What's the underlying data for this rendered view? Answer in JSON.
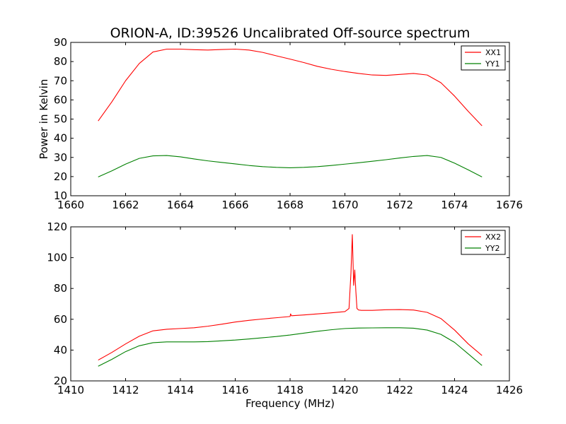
{
  "chart_data": [
    {
      "type": "line",
      "title": "ORION-A, ID:39526 Uncalibrated Off-source spectrum",
      "xlabel": "",
      "ylabel": "Power in Kelvin",
      "xlim": [
        1660,
        1676
      ],
      "ylim": [
        10,
        90
      ],
      "xticks": [
        "1660",
        "1662",
        "1664",
        "1666",
        "1668",
        "1670",
        "1672",
        "1674",
        "1676"
      ],
      "yticks": [
        "10",
        "20",
        "30",
        "40",
        "50",
        "60",
        "70",
        "80",
        "90"
      ],
      "legend": "top-right",
      "x": [
        1661.0,
        1661.5,
        1662.0,
        1662.5,
        1663.0,
        1663.5,
        1664.0,
        1664.5,
        1665.0,
        1665.5,
        1666.0,
        1666.5,
        1667.0,
        1667.5,
        1668.0,
        1668.5,
        1669.0,
        1669.5,
        1670.0,
        1670.5,
        1671.0,
        1671.5,
        1672.0,
        1672.5,
        1673.0,
        1673.5,
        1674.0,
        1674.5,
        1675.0
      ],
      "series": [
        {
          "name": "XX1",
          "color": "#ff0000",
          "values": [
            49,
            59,
            70,
            79,
            85,
            86.5,
            86.5,
            86.2,
            86,
            86.3,
            86.5,
            86,
            84.8,
            83,
            81.3,
            79.5,
            77.5,
            76,
            74.8,
            73.8,
            73,
            72.8,
            73.3,
            73.8,
            73,
            69,
            62,
            54,
            46.5
          ]
        },
        {
          "name": "YY1",
          "color": "#008000",
          "values": [
            19.8,
            23,
            26.5,
            29.5,
            30.8,
            31,
            30.3,
            29.2,
            28.2,
            27.4,
            26.6,
            25.8,
            25.2,
            24.8,
            24.6,
            24.8,
            25.2,
            25.8,
            26.5,
            27.2,
            28,
            28.8,
            29.7,
            30.5,
            31,
            30,
            27,
            23.5,
            19.8
          ]
        }
      ]
    },
    {
      "type": "line",
      "title": "",
      "xlabel": "Frequency (MHz)",
      "ylabel": "",
      "xlim": [
        1410,
        1426
      ],
      "ylim": [
        20,
        120
      ],
      "xticks": [
        "1410",
        "1412",
        "1414",
        "1416",
        "1418",
        "1420",
        "1422",
        "1424",
        "1426"
      ],
      "yticks": [
        "20",
        "40",
        "60",
        "80",
        "100",
        "120"
      ],
      "legend": "top-right",
      "series": [
        {
          "name": "XX2",
          "color": "#ff0000",
          "x": [
            1411.0,
            1411.5,
            1412.0,
            1412.5,
            1413.0,
            1413.5,
            1414.0,
            1414.5,
            1415.0,
            1415.5,
            1416.0,
            1416.5,
            1417.0,
            1417.5,
            1418.0,
            1418.02,
            1418.05,
            1418.5,
            1419.0,
            1419.5,
            1420.0,
            1420.15,
            1420.22,
            1420.27,
            1420.32,
            1420.36,
            1420.4,
            1420.44,
            1420.5,
            1420.6,
            1421.0,
            1421.5,
            1422.0,
            1422.5,
            1423.0,
            1423.5,
            1424.0,
            1424.5,
            1425.0
          ],
          "values": [
            33.5,
            38.5,
            44,
            49,
            52.5,
            53.5,
            54,
            54.5,
            55.5,
            56.8,
            58.2,
            59.3,
            60.2,
            61,
            61.8,
            63.5,
            62.3,
            62.8,
            63.5,
            64.2,
            65,
            67,
            90,
            115,
            82,
            92,
            78,
            67,
            66,
            65.8,
            65.8,
            66.2,
            66.3,
            66,
            64.5,
            60.5,
            53,
            44,
            36.5
          ]
        },
        {
          "name": "YY2",
          "color": "#008000",
          "x": [
            1411.0,
            1411.5,
            1412.0,
            1412.5,
            1413.0,
            1413.5,
            1414.0,
            1414.5,
            1415.0,
            1415.5,
            1416.0,
            1416.5,
            1417.0,
            1417.5,
            1418.0,
            1418.5,
            1419.0,
            1419.5,
            1420.0,
            1420.5,
            1421.0,
            1421.5,
            1422.0,
            1422.5,
            1423.0,
            1423.5,
            1424.0,
            1424.5,
            1425.0
          ],
          "values": [
            29.5,
            34,
            39,
            42.8,
            44.8,
            45.3,
            45.3,
            45.3,
            45.5,
            46,
            46.5,
            47.2,
            48,
            48.8,
            49.8,
            51,
            52.2,
            53.2,
            54,
            54.3,
            54.4,
            54.5,
            54.5,
            54.2,
            53,
            50.2,
            45,
            37.5,
            30
          ]
        }
      ]
    }
  ]
}
